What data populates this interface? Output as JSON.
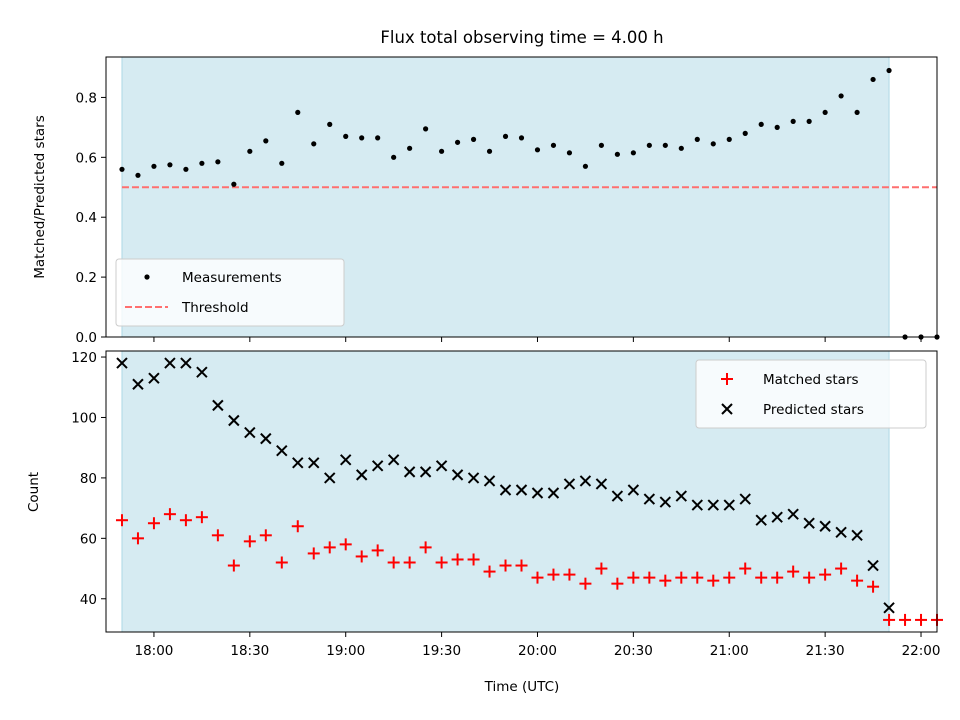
{
  "title": "Flux total observing time = 4.00 h",
  "colors": {
    "shade": "#add8e6",
    "measurement": "#000000",
    "threshold": "#ff6f6f",
    "matched": "#ff0000",
    "predicted": "#000000"
  },
  "chart_data": [
    {
      "type": "scatter",
      "ylabel": "Matched/Predicted stars",
      "ylim": [
        0,
        0.935
      ],
      "xlim": [
        "17:45",
        "22:05"
      ],
      "yticks": [
        "0.0",
        "0.2",
        "0.4",
        "0.6",
        "0.8"
      ],
      "shaded_span": [
        "17:50",
        "21:50"
      ],
      "legend_position": "lower-left",
      "series": [
        {
          "name": "Measurements",
          "marker": "dot",
          "x": [
            "17:50",
            "17:55",
            "18:00",
            "18:05",
            "18:10",
            "18:15",
            "18:20",
            "18:25",
            "18:30",
            "18:35",
            "18:40",
            "18:45",
            "18:50",
            "18:55",
            "19:00",
            "19:05",
            "19:10",
            "19:15",
            "19:20",
            "19:25",
            "19:30",
            "19:35",
            "19:40",
            "19:45",
            "19:50",
            "19:55",
            "20:00",
            "20:05",
            "20:10",
            "20:15",
            "20:20",
            "20:25",
            "20:30",
            "20:35",
            "20:40",
            "20:45",
            "20:50",
            "20:55",
            "21:00",
            "21:05",
            "21:10",
            "21:15",
            "21:20",
            "21:25",
            "21:30",
            "21:35",
            "21:40",
            "21:45",
            "21:50",
            "21:55",
            "22:00",
            "22:05"
          ],
          "y": [
            0.56,
            0.54,
            0.57,
            0.575,
            0.56,
            0.58,
            0.585,
            0.51,
            0.62,
            0.655,
            0.58,
            0.75,
            0.645,
            0.71,
            0.67,
            0.665,
            0.665,
            0.6,
            0.63,
            0.695,
            0.62,
            0.65,
            0.66,
            0.62,
            0.67,
            0.665,
            0.625,
            0.64,
            0.615,
            0.57,
            0.64,
            0.61,
            0.615,
            0.64,
            0.64,
            0.63,
            0.66,
            0.645,
            0.66,
            0.68,
            0.71,
            0.7,
            0.72,
            0.72,
            0.75,
            0.805,
            0.75,
            0.86,
            0.89,
            0.0,
            0.0,
            0.0
          ]
        },
        {
          "name": "Threshold",
          "style": "dashed",
          "x": [
            "17:50",
            "22:05"
          ],
          "y": [
            0.5,
            0.5
          ]
        }
      ]
    },
    {
      "type": "scatter",
      "ylabel": "Count",
      "xlabel": "Time (UTC)",
      "ylim": [
        29,
        122
      ],
      "xlim": [
        "17:45",
        "22:05"
      ],
      "yticks": [
        "40",
        "60",
        "80",
        "100",
        "120"
      ],
      "xticks": [
        "18:00",
        "18:30",
        "19:00",
        "19:30",
        "20:00",
        "20:30",
        "21:00",
        "21:30",
        "22:00"
      ],
      "shaded_span": [
        "17:50",
        "21:50"
      ],
      "legend_position": "upper-right",
      "series": [
        {
          "name": "Matched stars",
          "marker": "plus",
          "x": [
            "17:50",
            "17:55",
            "18:00",
            "18:05",
            "18:10",
            "18:15",
            "18:20",
            "18:25",
            "18:30",
            "18:35",
            "18:40",
            "18:45",
            "18:50",
            "18:55",
            "19:00",
            "19:05",
            "19:10",
            "19:15",
            "19:20",
            "19:25",
            "19:30",
            "19:35",
            "19:40",
            "19:45",
            "19:50",
            "19:55",
            "20:00",
            "20:05",
            "20:10",
            "20:15",
            "20:20",
            "20:25",
            "20:30",
            "20:35",
            "20:40",
            "20:45",
            "20:50",
            "20:55",
            "21:00",
            "21:05",
            "21:10",
            "21:15",
            "21:20",
            "21:25",
            "21:30",
            "21:35",
            "21:40",
            "21:45",
            "21:50",
            "21:55",
            "22:00",
            "22:05"
          ],
          "y": [
            66,
            60,
            65,
            68,
            66,
            67,
            61,
            51,
            59,
            61,
            52,
            64,
            55,
            57,
            58,
            54,
            56,
            52,
            52,
            57,
            52,
            53,
            53,
            49,
            51,
            51,
            47,
            48,
            48,
            45,
            50,
            45,
            47,
            47,
            46,
            47,
            47,
            46,
            47,
            50,
            47,
            47,
            49,
            47,
            48,
            50,
            46,
            44,
            33,
            33,
            33,
            33
          ]
        },
        {
          "name": "Predicted stars",
          "marker": "x",
          "x": [
            "17:50",
            "17:55",
            "18:00",
            "18:05",
            "18:10",
            "18:15",
            "18:20",
            "18:25",
            "18:30",
            "18:35",
            "18:40",
            "18:45",
            "18:50",
            "18:55",
            "19:00",
            "19:05",
            "19:10",
            "19:15",
            "19:20",
            "19:25",
            "19:30",
            "19:35",
            "19:40",
            "19:45",
            "19:50",
            "19:55",
            "20:00",
            "20:05",
            "20:10",
            "20:15",
            "20:20",
            "20:25",
            "20:30",
            "20:35",
            "20:40",
            "20:45",
            "20:50",
            "20:55",
            "21:00",
            "21:05",
            "21:10",
            "21:15",
            "21:20",
            "21:25",
            "21:30",
            "21:35",
            "21:40",
            "21:45",
            "21:50"
          ],
          "y": [
            118,
            111,
            113,
            118,
            118,
            115,
            104,
            99,
            95,
            93,
            89,
            85,
            85,
            80,
            86,
            81,
            84,
            86,
            82,
            82,
            84,
            81,
            80,
            79,
            76,
            76,
            75,
            75,
            78,
            79,
            78,
            74,
            76,
            73,
            72,
            74,
            71,
            71,
            71,
            73,
            66,
            67,
            68,
            65,
            64,
            62,
            61,
            51,
            37
          ]
        }
      ]
    }
  ]
}
